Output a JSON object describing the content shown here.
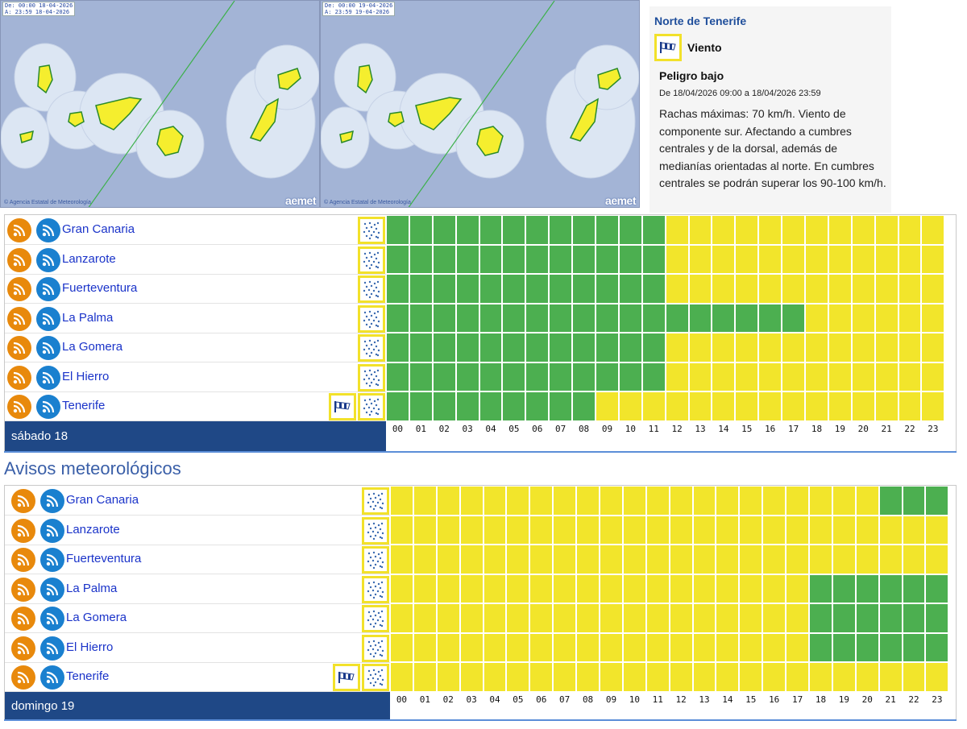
{
  "maps": [
    {
      "from": "De: 00:00 18-04-2026",
      "to": "A:  23:59 18-04-2026",
      "credit": "© Agencia Estatal de Meteorología",
      "logo": "aemet"
    },
    {
      "from": "De: 00:00 19-04-2026",
      "to": "A:  23:59 19-04-2026",
      "credit": "© Agencia Estatal de Meteorología",
      "logo": "aemet"
    }
  ],
  "detail": {
    "zone": "Norte de Tenerife",
    "phenomenon": "Viento",
    "phenomenon_icon": "wind-flag-icon",
    "level": "Peligro bajo",
    "period": "De 18/04/2026 09:00 a 18/04/2026 23:59",
    "description": "Rachas máximas: 70 km/h. Viento de componente sur. Afectando a cumbres centrales y de la dorsal, además de medianías orientadas al norte. En cumbres centrales se podrán superar los 90-100 km/h."
  },
  "section_title": "Avisos meteorológicos",
  "hours": [
    "00",
    "01",
    "02",
    "03",
    "04",
    "05",
    "06",
    "07",
    "08",
    "09",
    "10",
    "11",
    "12",
    "13",
    "14",
    "15",
    "16",
    "17",
    "18",
    "19",
    "20",
    "21",
    "22",
    "23"
  ],
  "colors": {
    "green": "#4caf50",
    "yellow": "#f2e52b",
    "navy": "#1f4886",
    "link": "#1a33c9"
  },
  "days": [
    {
      "label": "sábado 18",
      "rows": [
        {
          "name": "Gran Canaria",
          "wind_icon": false,
          "first_yellow": 12,
          "green_after": null
        },
        {
          "name": "Lanzarote",
          "wind_icon": false,
          "first_yellow": 12,
          "green_after": null
        },
        {
          "name": "Fuerteventura",
          "wind_icon": false,
          "first_yellow": 12,
          "green_after": null
        },
        {
          "name": "La Palma",
          "wind_icon": false,
          "first_yellow": 18,
          "green_after": null
        },
        {
          "name": "La Gomera",
          "wind_icon": false,
          "first_yellow": 12,
          "green_after": null
        },
        {
          "name": "El Hierro",
          "wind_icon": false,
          "first_yellow": 12,
          "green_after": null
        },
        {
          "name": "Tenerife",
          "wind_icon": true,
          "first_yellow": 9,
          "green_after": null
        }
      ]
    },
    {
      "label": "domingo 19",
      "rows": [
        {
          "name": "Gran Canaria",
          "wind_icon": false,
          "first_yellow": 0,
          "green_after": 21
        },
        {
          "name": "Lanzarote",
          "wind_icon": false,
          "first_yellow": 0,
          "green_after": null
        },
        {
          "name": "Fuerteventura",
          "wind_icon": false,
          "first_yellow": 0,
          "green_after": null
        },
        {
          "name": "La Palma",
          "wind_icon": false,
          "first_yellow": 0,
          "green_after": 18
        },
        {
          "name": "La Gomera",
          "wind_icon": false,
          "first_yellow": 0,
          "green_after": 18
        },
        {
          "name": "El Hierro",
          "wind_icon": false,
          "first_yellow": 0,
          "green_after": 18
        },
        {
          "name": "Tenerife",
          "wind_icon": true,
          "first_yellow": 0,
          "green_after": null
        }
      ]
    }
  ]
}
